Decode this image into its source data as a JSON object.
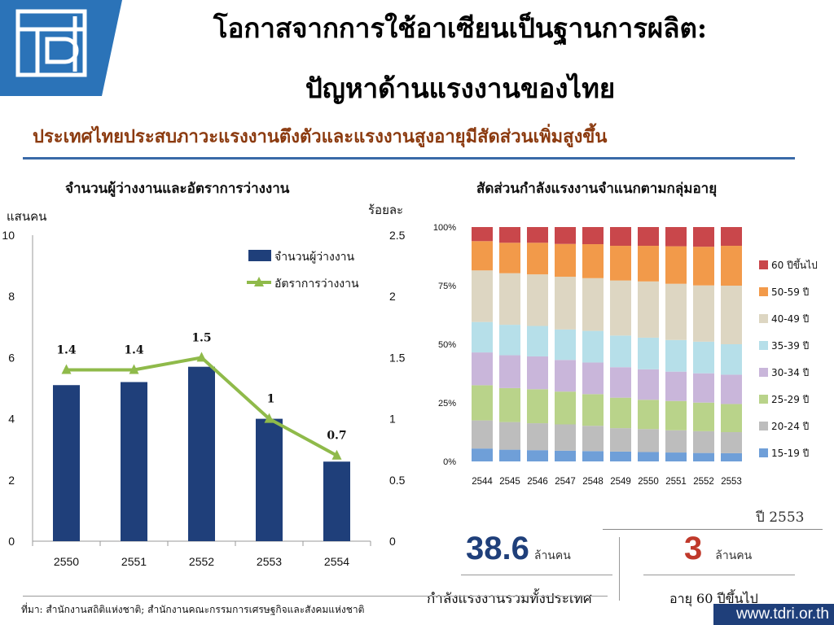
{
  "header": {
    "title_line1": "โอกาสจากการใช้อาเซียนเป็นฐานการผลิต:",
    "title_line2": "ปัญหาด้านแรงงานของไทย",
    "subtitle": "ประเทศไทยประสบภาวะแรงงานตึงตัวและแรงงานสูงอายุมีสัดส่วนเพิ่มสูงขึ้น"
  },
  "colors": {
    "logo_bg": "#2b73b8",
    "bar": "#1f3f7a",
    "line": "#8fba4a",
    "subtitle": "#8b3a0f",
    "age_groups": [
      "#6f9fd8",
      "#bdbdbd",
      "#b9d38a",
      "#c9b6da",
      "#b6dfe9",
      "#ddd6c2",
      "#f29a4a",
      "#c9474b"
    ]
  },
  "chart_data": [
    {
      "type": "bar",
      "title": "จำนวนผู้ว่างงานและอัตราการว่างงาน",
      "ylabel_left": "แสนคน",
      "ylabel_right": "ร้อยละ",
      "categories": [
        "2550",
        "2551",
        "2552",
        "2553",
        "2554"
      ],
      "series": [
        {
          "name": "จำนวนผู้ว่างงาน",
          "type": "bar",
          "axis": "left",
          "values": [
            5.1,
            5.2,
            5.7,
            4.0,
            2.6
          ]
        },
        {
          "name": "อัตราการว่างงาน",
          "type": "line",
          "axis": "right",
          "values": [
            1.4,
            1.4,
            1.5,
            1.0,
            0.7
          ],
          "data_labels": [
            "1.4",
            "1.4",
            "1.5",
            "1",
            "0.7"
          ]
        }
      ],
      "ylim_left": [
        0,
        10
      ],
      "ylim_right": [
        0,
        2.5
      ],
      "yticks_left": [
        "0",
        "2",
        "4",
        "6",
        "8",
        "10"
      ],
      "yticks_right": [
        "0",
        "0.5",
        "1",
        "1.5",
        "2",
        "2.5"
      ],
      "legend_position": "top-right"
    },
    {
      "type": "bar",
      "stacked": "percent",
      "title": "สัดส่วนกำลังแรงงานจำแนกตามกลุ่มอายุ",
      "categories": [
        "2544",
        "2545",
        "2546",
        "2547",
        "2548",
        "2549",
        "2550",
        "2551",
        "2552",
        "2553"
      ],
      "yticks": [
        "0%",
        "25%",
        "50%",
        "75%",
        "100%"
      ],
      "ylim": [
        0,
        100
      ],
      "series": [
        {
          "name": "15-19 ปี",
          "values": [
            5.5,
            5.0,
            4.8,
            4.6,
            4.4,
            4.2,
            4.0,
            3.8,
            3.6,
            3.5
          ]
        },
        {
          "name": "20-24 ปี",
          "values": [
            12.0,
            11.8,
            11.5,
            11.2,
            10.8,
            10.0,
            9.8,
            9.5,
            9.3,
            9.0
          ]
        },
        {
          "name": "25-29 ปี",
          "values": [
            15.0,
            14.5,
            14.5,
            14.0,
            13.5,
            13.0,
            12.5,
            12.5,
            12.2,
            12.0
          ]
        },
        {
          "name": "30-34 ปี",
          "values": [
            14.0,
            14.0,
            14.0,
            13.5,
            13.5,
            13.0,
            13.0,
            12.5,
            12.5,
            12.5
          ]
        },
        {
          "name": "35-39 ปี",
          "values": [
            13.0,
            13.0,
            13.0,
            13.0,
            13.5,
            13.5,
            13.5,
            13.5,
            13.5,
            13.0
          ]
        },
        {
          "name": "40-49 ปี",
          "values": [
            22.0,
            22.0,
            22.0,
            22.5,
            22.5,
            23.5,
            24.0,
            24.0,
            24.0,
            25.0
          ]
        },
        {
          "name": "50-59 ปี",
          "values": [
            12.5,
            13.0,
            13.5,
            14.0,
            14.5,
            14.8,
            15.2,
            16.0,
            16.5,
            17.0
          ]
        },
        {
          "name": "60 ปีขึ้นไป",
          "values": [
            6.0,
            6.7,
            6.7,
            7.2,
            7.3,
            8.0,
            8.0,
            8.2,
            8.4,
            8.0
          ]
        }
      ],
      "legend_position": "right"
    }
  ],
  "stats": {
    "year_label": "ปี 2553",
    "labor_force_value": "38.6",
    "labor_force_unit": "ล้านคน",
    "labor_force_label": "กำลังแรงงานรวมทั้งประเทศ",
    "elderly_value": "3",
    "elderly_unit": "ล้านคน",
    "elderly_label": "อายุ 60 ปีขึ้นไป"
  },
  "footer": {
    "source": "ที่มา: สำนักงานสถิติแห่งชาติ; สำนักงานคณะกรรมการเศรษฐกิจและสังคมแห่งชาติ",
    "url": "www.tdri.or.th"
  }
}
